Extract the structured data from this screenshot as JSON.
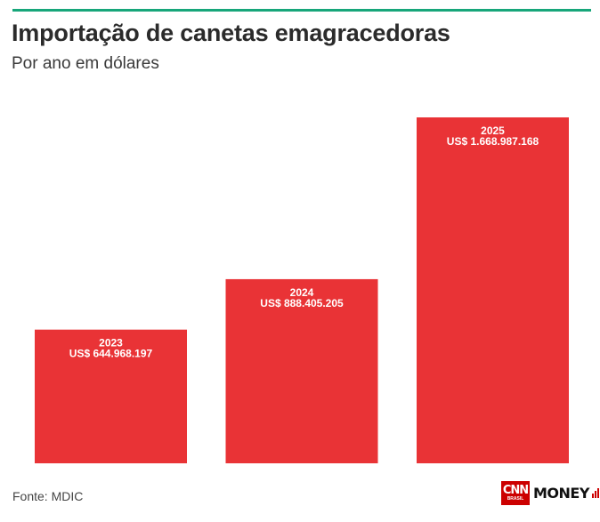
{
  "header": {
    "title": "Importação de canetas emagracedoras",
    "subtitle": "Por ano em dólares",
    "accent_color": "#17a67a"
  },
  "chart_data": {
    "type": "bar",
    "title": "Importação de canetas emagracedoras",
    "subtitle": "Por ano em dólares",
    "categories": [
      "2023",
      "2024",
      "2025"
    ],
    "values": [
      644968197,
      888405205,
      1668987168
    ],
    "data_labels": [
      "US$ 644.968.197",
      "US$ 888.405.205",
      "US$ 1.668.987.168"
    ],
    "bar_color": "#e93336",
    "xlabel": "",
    "ylabel": "",
    "ylim": [
      0,
      1668987168
    ],
    "grid": false,
    "legend": "none"
  },
  "footer": {
    "source": "Fonte: MDIC",
    "logo_cnn": "CNN",
    "logo_brasil": "BRASIL",
    "logo_money": "MONEY"
  }
}
